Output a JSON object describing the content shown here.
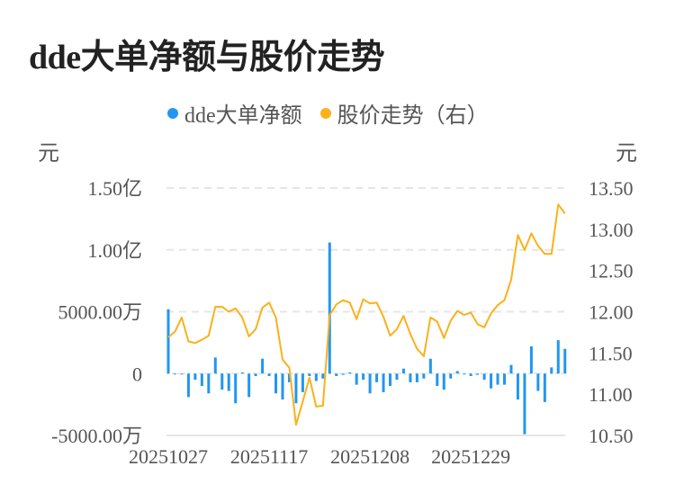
{
  "title": "dde大单净额与股价走势",
  "legend": [
    {
      "label": "dde大单净额",
      "color": "#2196F3"
    },
    {
      "label": "股价走势（右）",
      "color": "#FBB11B"
    }
  ],
  "chart_data": {
    "type": "bar+line",
    "title": "dde大单净额与股价走势",
    "left_axis": {
      "unit": "元",
      "ticks": [
        "1.50亿",
        "1.00亿",
        "5000.00万",
        "0",
        "-5000.00万"
      ],
      "tick_values": [
        15000,
        10000,
        5000,
        0,
        -5000
      ],
      "range": [
        -5000,
        15000
      ],
      "value_unit": "万"
    },
    "right_axis": {
      "unit": "元",
      "ticks": [
        "13.50",
        "13.00",
        "12.50",
        "12.00",
        "11.50",
        "11.00",
        "10.50"
      ],
      "range": [
        10.5,
        13.5
      ]
    },
    "x_tick_labels": [
      "20251027",
      "20251117",
      "20251208",
      "20251229"
    ],
    "x_tick_indices": [
      0,
      15,
      30,
      45
    ],
    "grid": true,
    "series": [
      {
        "name": "dde大单净额",
        "type": "bar",
        "axis": "left",
        "color": "#2196F3",
        "values": [
          5200,
          -30,
          -30,
          -1900,
          -500,
          -1000,
          -1600,
          1300,
          -1300,
          -1400,
          -2400,
          100,
          -1900,
          -200,
          1200,
          -200,
          -1600,
          -2100,
          -700,
          -2400,
          -1500,
          -200,
          -600,
          -400,
          10600,
          -200,
          -100,
          100,
          -900,
          -500,
          -1600,
          -700,
          -1500,
          -1000,
          -500,
          400,
          -700,
          -700,
          -400,
          1200,
          -1000,
          -1300,
          -400,
          200,
          -50,
          -200,
          -100,
          -500,
          -1200,
          -900,
          -900,
          700,
          -2100,
          -4900,
          2200,
          -1400,
          -2300,
          500,
          2700,
          2000
        ]
      },
      {
        "name": "股价走势（右）",
        "type": "line",
        "axis": "right",
        "color": "#FBB11B",
        "values": [
          11.69,
          11.76,
          11.93,
          11.64,
          11.62,
          11.66,
          11.71,
          12.06,
          12.06,
          12.0,
          12.04,
          11.93,
          11.7,
          11.79,
          12.05,
          12.11,
          11.93,
          11.42,
          11.32,
          10.63,
          10.91,
          11.2,
          10.85,
          10.86,
          11.96,
          12.09,
          12.14,
          12.11,
          11.91,
          12.15,
          12.1,
          12.11,
          11.94,
          11.71,
          11.79,
          11.95,
          11.73,
          11.55,
          11.46,
          11.93,
          11.88,
          11.68,
          11.89,
          12.01,
          11.96,
          11.99,
          11.85,
          11.81,
          11.98,
          12.08,
          12.14,
          12.39,
          12.93,
          12.75,
          12.95,
          12.8,
          12.7,
          12.7,
          13.3,
          13.19
        ]
      }
    ]
  }
}
